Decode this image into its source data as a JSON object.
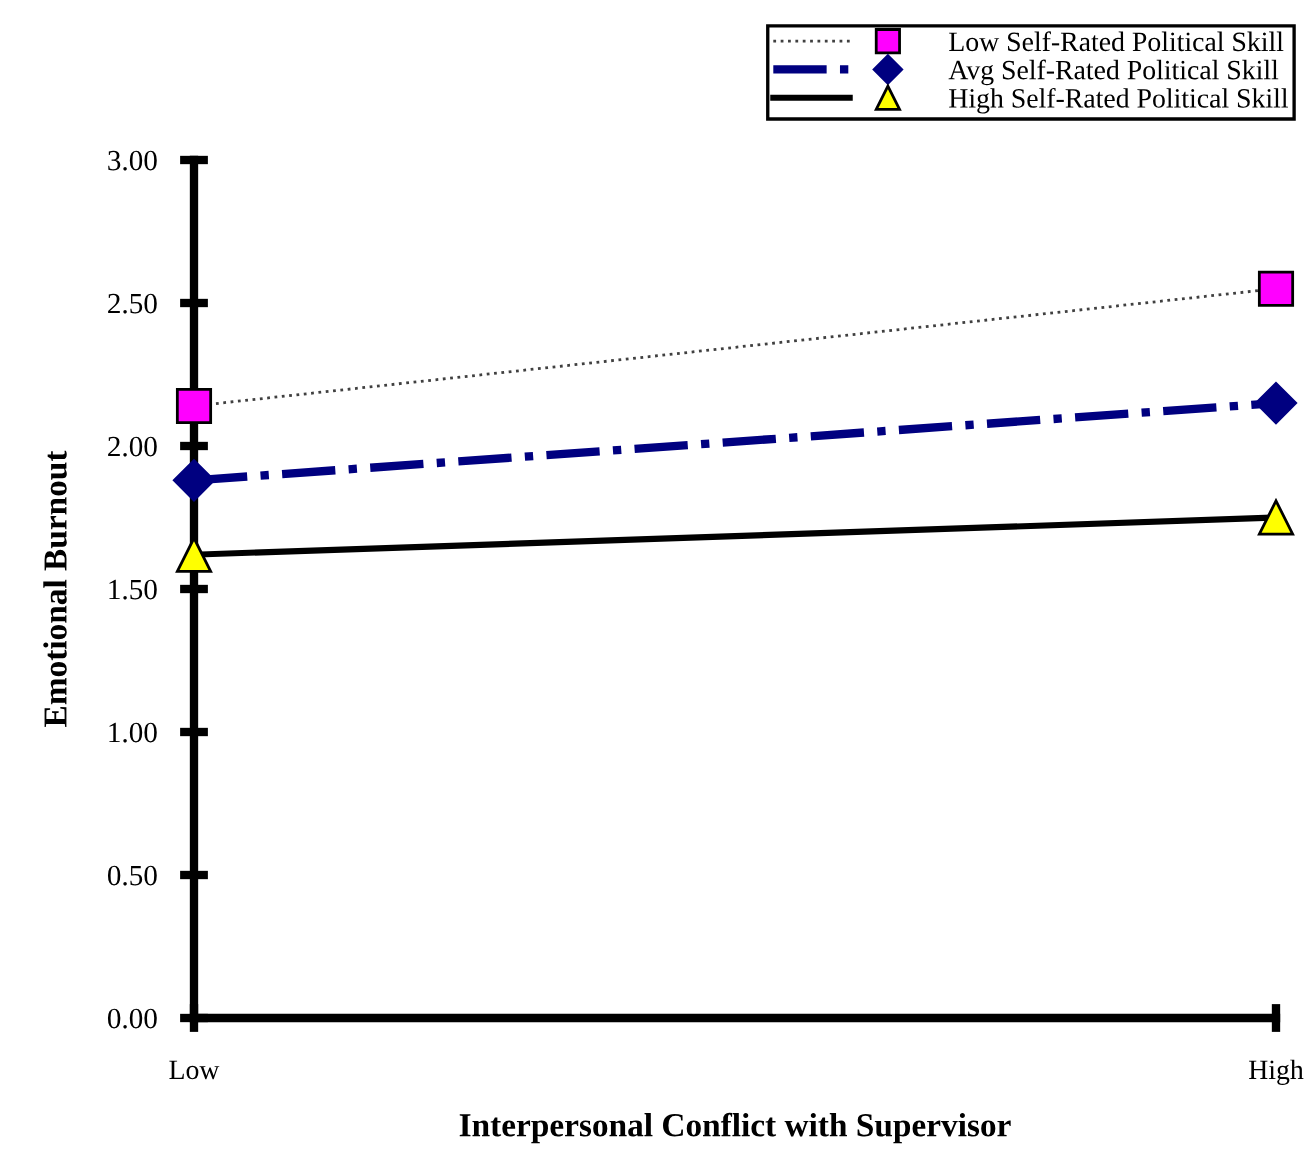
{
  "chart_data": {
    "type": "line",
    "xlabel": "Interpersonal Conflict with Supervisor",
    "ylabel": "Emotional Burnout",
    "categories": [
      "Low",
      "High"
    ],
    "series": [
      {
        "name": "Low Self-Rated Political Skill",
        "color": "#404040",
        "colors": [
          "#ff00ff",
          "#ff00ff"
        ],
        "values": [
          2.14,
          2.55
        ],
        "marker": "square",
        "line_style": "dotted"
      },
      {
        "name": "Avg Self-Rated Political Skill",
        "color": "#000080",
        "values": [
          1.88,
          2.15
        ],
        "marker": "diamond",
        "line_style": "dashdot"
      },
      {
        "name": "High Self-Rated Political Skill",
        "color": "#000000",
        "colors": [
          "#ffff00",
          "#ffff00"
        ],
        "values": [
          1.62,
          1.75
        ],
        "marker": "triangle",
        "line_style": "solid"
      }
    ],
    "ylim": [
      0,
      3
    ],
    "yticks": [
      {
        "value": 0,
        "label": "0.00"
      },
      {
        "value": 0.5,
        "label": "0.50"
      },
      {
        "value": 1,
        "label": "1.00"
      },
      {
        "value": 1.5,
        "label": "1.50"
      },
      {
        "value": 2,
        "label": "2.00"
      },
      {
        "value": 2.5,
        "label": "2.50"
      },
      {
        "value": 3,
        "label": "3.00"
      }
    ],
    "grid": false,
    "legend": "top right"
  }
}
